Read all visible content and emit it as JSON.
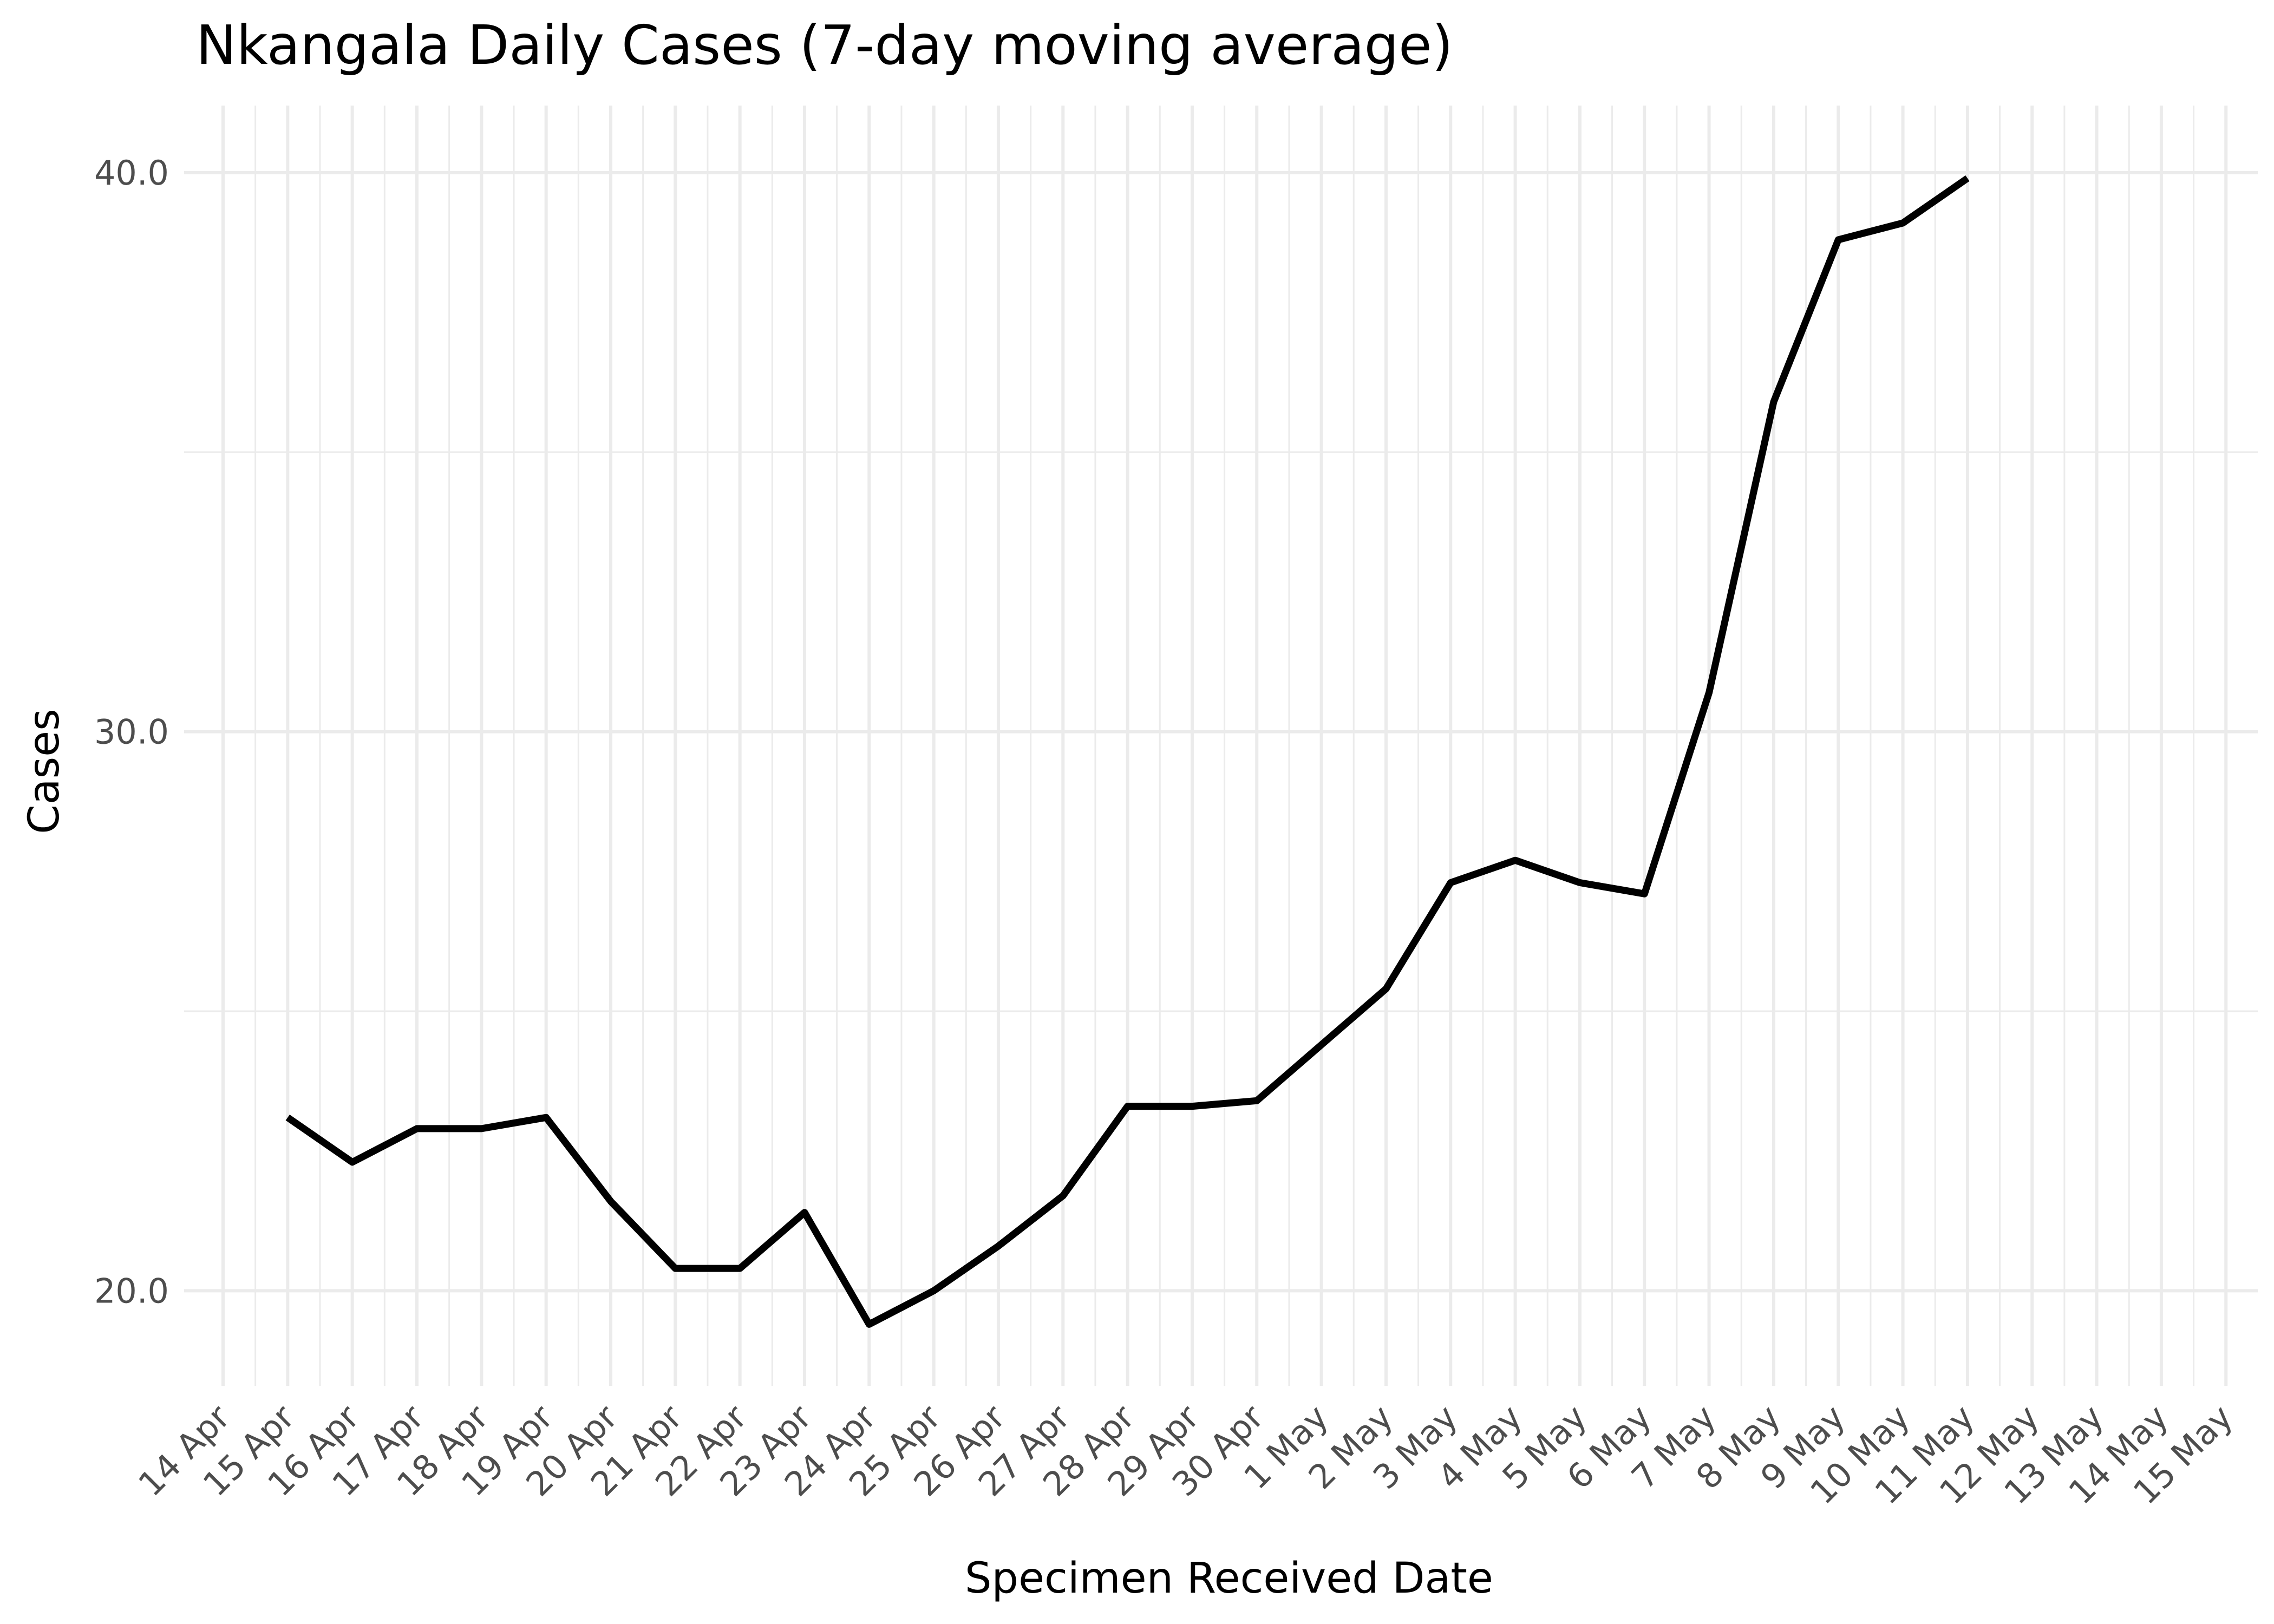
{
  "chart_data": {
    "type": "line",
    "title": "Nkangala Daily Cases (7-day moving average)",
    "xlabel": "Specimen Received Date",
    "ylabel": "Cases",
    "x_ticks": [
      "14 Apr",
      "15 Apr",
      "16 Apr",
      "17 Apr",
      "18 Apr",
      "19 Apr",
      "20 Apr",
      "21 Apr",
      "22 Apr",
      "23 Apr",
      "24 Apr",
      "25 Apr",
      "26 Apr",
      "27 Apr",
      "28 Apr",
      "29 Apr",
      "30 Apr",
      "1 May",
      "2 May",
      "3 May",
      "4 May",
      "5 May",
      "6 May",
      "7 May",
      "8 May",
      "9 May",
      "10 May",
      "11 May",
      "12 May",
      "13 May",
      "14 May",
      "15 May"
    ],
    "y_ticks": [
      "20.0",
      "30.0",
      "40.0"
    ],
    "y_tick_values": [
      20,
      30,
      40
    ],
    "ylim": [
      18.3,
      41.2
    ],
    "grid": true,
    "x": [
      "15 Apr",
      "16 Apr",
      "17 Apr",
      "18 Apr",
      "19 Apr",
      "20 Apr",
      "21 Apr",
      "22 Apr",
      "23 Apr",
      "24 Apr",
      "25 Apr",
      "26 Apr",
      "27 Apr",
      "28 Apr",
      "29 Apr",
      "30 Apr",
      "1 May",
      "2 May",
      "3 May",
      "4 May",
      "5 May",
      "6 May",
      "7 May",
      "8 May",
      "9 May",
      "10 May",
      "11 May"
    ],
    "series": [
      {
        "values": [
          23.1,
          22.3,
          22.9,
          22.9,
          23.1,
          21.6,
          20.4,
          20.4,
          21.4,
          19.4,
          20.0,
          20.8,
          21.7,
          23.3,
          23.3,
          23.4,
          24.4,
          25.4,
          27.3,
          27.7,
          27.3,
          27.1,
          30.7,
          35.9,
          38.8,
          39.1,
          39.9
        ],
        "color": "#000000"
      }
    ]
  }
}
